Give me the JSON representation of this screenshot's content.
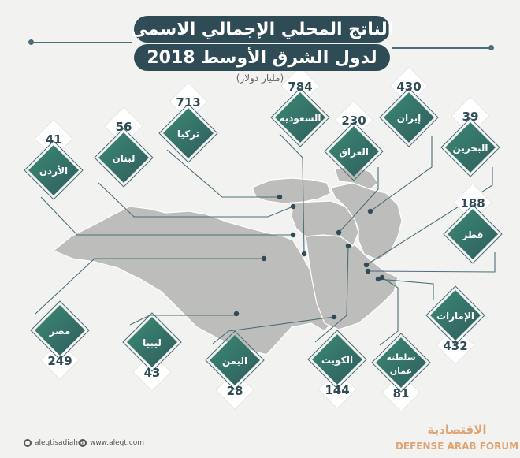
{
  "header": {
    "title_line1": "الناتج المحلي الإجمالي الاسمي",
    "title_line2": "لدول الشرق الأوسط 2018",
    "unit": "(مليار دولار)"
  },
  "footer": {
    "handle": "aleqtisadiah@",
    "site": "www.aleqt.com",
    "watermark_top": "الاقتصادية",
    "watermark_bottom": "DEFENSE ARAB FORUM"
  },
  "colors": {
    "tile_dark": "#2f5c5e",
    "tile_light": "#3b8a73",
    "title_bg": "#2f4b55",
    "map_fill": "#bdbdbb",
    "line": "#4a6f78",
    "value_text": "#2f4b55"
  },
  "chart_data": {
    "type": "bar",
    "title": "الناتج المحلي الإجمالي الاسمي لدول الشرق الأوسط 2018",
    "unit": "مليار دولار",
    "categories": [
      "الأردن",
      "لبنان",
      "تركيا",
      "السعودية",
      "العراق",
      "إيران",
      "البحرين",
      "قطر",
      "الإمارات",
      "سلطنة عمان",
      "الكويت",
      "اليمن",
      "ليبيا",
      "مصر"
    ],
    "values": [
      41,
      56,
      713,
      784,
      230,
      430,
      39,
      188,
      432,
      81,
      144,
      28,
      43,
      249
    ]
  }
}
